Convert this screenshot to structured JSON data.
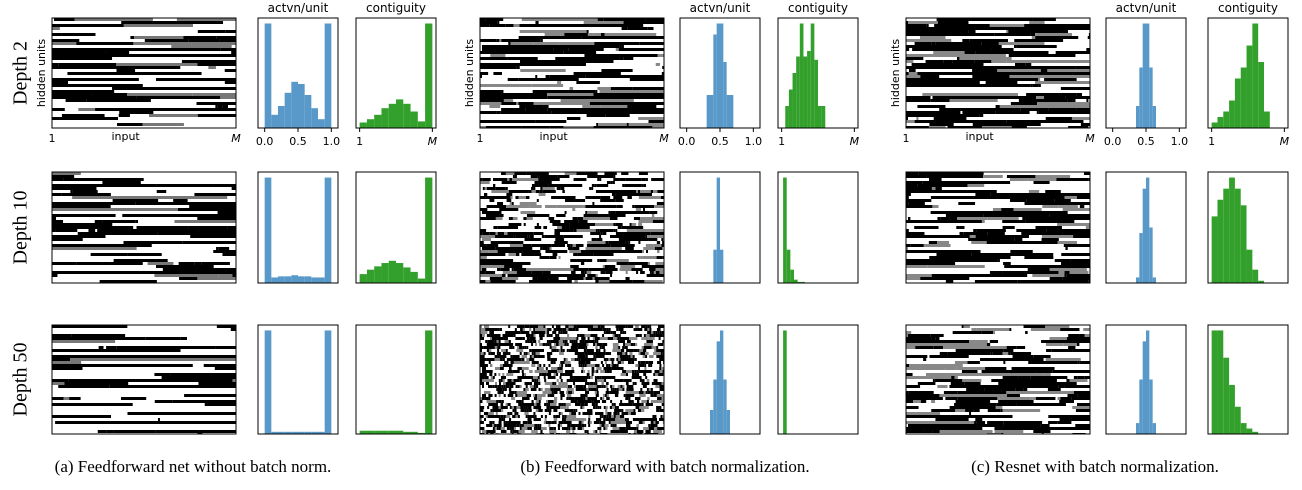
{
  "row_labels": [
    "Depth 2",
    "Depth 10",
    "Depth 50"
  ],
  "captions": [
    "(a) Feedforward net without batch norm.",
    "(b) Feedforward with batch normalization.",
    "(c) Resnet with batch normalization."
  ],
  "images": [
    {
      "ylabel": "hidden units",
      "xlabel": "input",
      "xticks": [
        "1",
        "M"
      ]
    },
    {
      "ylabel": "hidden units",
      "xlabel": "input",
      "xticks": [
        "1",
        "M"
      ]
    },
    {
      "ylabel": "hidden units",
      "xlabel": "input",
      "xticks": [
        "1",
        "M"
      ]
    }
  ],
  "chart_data": [
    {
      "type": "histogram",
      "title": "actvn/unit",
      "color": "#5899c9",
      "bins": [
        0,
        0.1,
        0.2,
        0.3,
        0.4,
        0.5,
        0.6,
        0.7,
        0.8,
        0.9,
        1.0
      ],
      "values": [
        95,
        12,
        20,
        32,
        42,
        40,
        30,
        18,
        8,
        95
      ],
      "xlim": [
        -0.1,
        1.1
      ],
      "ylim": [
        0,
        100
      ],
      "xticks": [
        {
          "value": 0,
          "label": "0.0"
        },
        {
          "value": 0.5,
          "label": "0.5"
        },
        {
          "value": 1,
          "label": "1.0"
        }
      ]
    },
    {
      "type": "histogram",
      "title": "contiguity",
      "color": "#33a02c",
      "bins": [
        0,
        0.1,
        0.2,
        0.3,
        0.4,
        0.5,
        0.6,
        0.7,
        0.8,
        0.9,
        1.0
      ],
      "values": [
        5,
        8,
        12,
        18,
        22,
        26,
        22,
        15,
        6,
        95
      ],
      "xlim": [
        -0.05,
        1.05
      ],
      "ylim": [
        0,
        100
      ],
      "xticks": [
        {
          "value": 0,
          "label": "1"
        },
        {
          "value": 1,
          "label": "M"
        }
      ]
    },
    {
      "type": "histogram",
      "color": "#5899c9",
      "bins": [
        0,
        0.1,
        0.2,
        0.3,
        0.4,
        0.5,
        0.6,
        0.7,
        0.8,
        0.9,
        1.0
      ],
      "values": [
        95,
        5,
        6,
        6,
        7,
        6,
        6,
        5,
        5,
        95
      ],
      "xlim": [
        -0.1,
        1.1
      ],
      "ylim": [
        0,
        100
      ]
    },
    {
      "type": "histogram",
      "color": "#33a02c",
      "bins": [
        0,
        0.1,
        0.2,
        0.3,
        0.4,
        0.5,
        0.6,
        0.7,
        0.8,
        0.9,
        1.0
      ],
      "values": [
        8,
        12,
        15,
        18,
        20,
        18,
        14,
        10,
        4,
        95
      ],
      "xlim": [
        -0.05,
        1.05
      ],
      "ylim": [
        0,
        100
      ]
    },
    {
      "type": "histogram",
      "color": "#5899c9",
      "bins": [
        0,
        0.1,
        0.2,
        0.3,
        0.4,
        0.5,
        0.6,
        0.7,
        0.8,
        0.9,
        1.0
      ],
      "values": [
        95,
        2,
        2,
        2,
        2,
        2,
        2,
        2,
        2,
        95
      ],
      "xlim": [
        -0.1,
        1.1
      ],
      "ylim": [
        0,
        100
      ]
    },
    {
      "type": "histogram",
      "color": "#33a02c",
      "bins": [
        0,
        0.1,
        0.2,
        0.3,
        0.4,
        0.5,
        0.6,
        0.7,
        0.8,
        0.9,
        1.0
      ],
      "values": [
        3,
        3,
        3,
        3,
        3,
        3,
        2,
        2,
        1,
        95
      ],
      "xlim": [
        -0.05,
        1.05
      ],
      "ylim": [
        0,
        100
      ]
    },
    {
      "type": "histogram",
      "title": "actvn/unit",
      "color": "#5899c9",
      "bins": [
        0.3,
        0.4,
        0.45,
        0.5,
        0.55,
        0.6,
        0.7
      ],
      "values": [
        30,
        85,
        95,
        95,
        60,
        30
      ],
      "xlim": [
        -0.1,
        1.1
      ],
      "ylim": [
        0,
        100
      ],
      "xticks": [
        {
          "value": 0,
          "label": "0.0"
        },
        {
          "value": 0.5,
          "label": "0.5"
        },
        {
          "value": 1,
          "label": "1.0"
        }
      ]
    },
    {
      "type": "histogram",
      "title": "contiguity",
      "color": "#33a02c",
      "bins": [
        0.05,
        0.1,
        0.15,
        0.2,
        0.25,
        0.3,
        0.35,
        0.4,
        0.45,
        0.5,
        0.55,
        0.6
      ],
      "values": [
        20,
        35,
        50,
        65,
        95,
        65,
        70,
        95,
        62,
        20,
        20
      ],
      "xlim": [
        -0.05,
        1.05
      ],
      "ylim": [
        0,
        100
      ],
      "xticks": [
        {
          "value": 0,
          "label": "1"
        },
        {
          "value": 1,
          "label": "M"
        }
      ]
    },
    {
      "type": "histogram",
      "color": "#5899c9",
      "bins": [
        0.4,
        0.45,
        0.5,
        0.55
      ],
      "values": [
        30,
        95,
        30
      ],
      "xlim": [
        -0.1,
        1.1
      ],
      "ylim": [
        0,
        100
      ]
    },
    {
      "type": "histogram",
      "color": "#33a02c",
      "bins": [
        0.02,
        0.07,
        0.12,
        0.17,
        0.22,
        0.27,
        0.32
      ],
      "values": [
        95,
        30,
        12,
        3,
        1,
        1
      ],
      "xlim": [
        -0.05,
        1.05
      ],
      "ylim": [
        0,
        100
      ]
    },
    {
      "type": "histogram",
      "color": "#5899c9",
      "bins": [
        0.35,
        0.4,
        0.45,
        0.5,
        0.55,
        0.6,
        0.65
      ],
      "values": [
        22,
        50,
        85,
        95,
        50,
        22
      ],
      "xlim": [
        -0.1,
        1.1
      ],
      "ylim": [
        0,
        100
      ]
    },
    {
      "type": "histogram",
      "color": "#33a02c",
      "bins": [
        0.02,
        0.07
      ],
      "values": [
        95
      ],
      "xlim": [
        -0.05,
        1.05
      ],
      "ylim": [
        0,
        100
      ]
    },
    {
      "type": "histogram",
      "title": "actvn/unit",
      "color": "#5899c9",
      "bins": [
        0.35,
        0.4,
        0.45,
        0.5,
        0.55,
        0.6,
        0.65
      ],
      "values": [
        20,
        55,
        95,
        95,
        55,
        20
      ],
      "xlim": [
        -0.1,
        1.1
      ],
      "ylim": [
        0,
        100
      ],
      "xticks": [
        {
          "value": 0,
          "label": "0.0"
        },
        {
          "value": 0.5,
          "label": "0.5"
        },
        {
          "value": 1,
          "label": "1.0"
        }
      ]
    },
    {
      "type": "histogram",
      "title": "contiguity",
      "color": "#33a02c",
      "bins": [
        0,
        0.08,
        0.16,
        0.24,
        0.32,
        0.4,
        0.48,
        0.56,
        0.64,
        0.72,
        0.8
      ],
      "values": [
        5,
        10,
        15,
        25,
        45,
        55,
        75,
        95,
        60,
        15
      ],
      "xlim": [
        -0.05,
        1.05
      ],
      "ylim": [
        0,
        100
      ],
      "xticks": [
        {
          "value": 0,
          "label": "1"
        },
        {
          "value": 1,
          "label": "M"
        }
      ]
    },
    {
      "type": "histogram",
      "color": "#5899c9",
      "bins": [
        0.35,
        0.4,
        0.45,
        0.5,
        0.55,
        0.6,
        0.65
      ],
      "values": [
        5,
        45,
        85,
        95,
        50,
        5
      ],
      "xlim": [
        -0.1,
        1.1
      ],
      "ylim": [
        0,
        100
      ]
    },
    {
      "type": "histogram",
      "color": "#33a02c",
      "bins": [
        0,
        0.08,
        0.16,
        0.24,
        0.32,
        0.4,
        0.48,
        0.56,
        0.64,
        0.72
      ],
      "values": [
        60,
        75,
        85,
        95,
        85,
        70,
        30,
        12,
        2
      ],
      "xlim": [
        -0.05,
        1.05
      ],
      "ylim": [
        0,
        100
      ]
    },
    {
      "type": "histogram",
      "color": "#5899c9",
      "bins": [
        0.35,
        0.4,
        0.45,
        0.5,
        0.55,
        0.6,
        0.65
      ],
      "values": [
        10,
        50,
        85,
        95,
        50,
        10
      ],
      "xlim": [
        -0.1,
        1.1
      ],
      "ylim": [
        0,
        100
      ]
    },
    {
      "type": "histogram",
      "color": "#33a02c",
      "bins": [
        0,
        0.08,
        0.16,
        0.24,
        0.32,
        0.4,
        0.48,
        0.56,
        0.64
      ],
      "values": [
        95,
        95,
        70,
        45,
        25,
        10,
        5,
        2
      ],
      "xlim": [
        -0.05,
        1.05
      ],
      "ylim": [
        0,
        100
      ]
    }
  ]
}
